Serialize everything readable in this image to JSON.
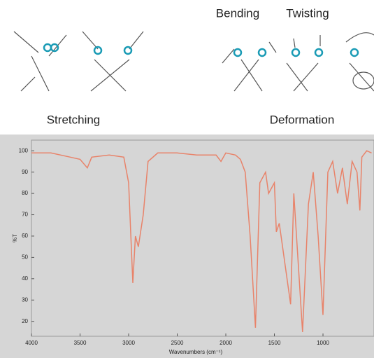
{
  "chart_data": {
    "type": "line",
    "annotations": [
      "Bending",
      "Twisting",
      "Stretching",
      "Deformation"
    ],
    "x_label": "Wavenumbers (cm⁻¹)",
    "y_label": "%T",
    "xlim": [
      4000,
      475
    ],
    "ylim": [
      13,
      105
    ],
    "xticks": [
      4000,
      3500,
      3000,
      2500,
      2000,
      1500,
      1000
    ],
    "yticks": [
      20,
      30,
      40,
      50,
      60,
      70,
      80,
      90,
      100
    ],
    "series": [
      {
        "color": "#e8836a",
        "x": [
          4000,
          3800,
          3600,
          3500,
          3425,
          3380,
          3200,
          3050,
          3000,
          2957,
          2930,
          2900,
          2870,
          2850,
          2800,
          2700,
          2500,
          2300,
          2100,
          2050,
          2000,
          1900,
          1850,
          1800,
          1750,
          1695,
          1650,
          1591,
          1560,
          1500,
          1480,
          1450,
          1333,
          1300,
          1210,
          1150,
          1100,
          1050,
          1000,
          950,
          900,
          850,
          800,
          750,
          700,
          650,
          620,
          600,
          550,
          500
        ],
        "values": [
          99,
          99,
          97,
          96,
          92,
          97,
          98,
          97,
          85,
          38,
          60,
          55,
          64,
          70,
          95,
          99,
          99,
          98,
          98,
          95,
          99,
          98,
          96,
          90,
          60,
          17,
          85,
          90,
          80,
          85,
          62,
          66,
          28,
          80,
          15,
          75,
          90,
          60,
          23,
          90,
          95,
          80,
          92,
          75,
          95,
          90,
          72,
          97,
          100,
          99
        ]
      }
    ]
  }
}
